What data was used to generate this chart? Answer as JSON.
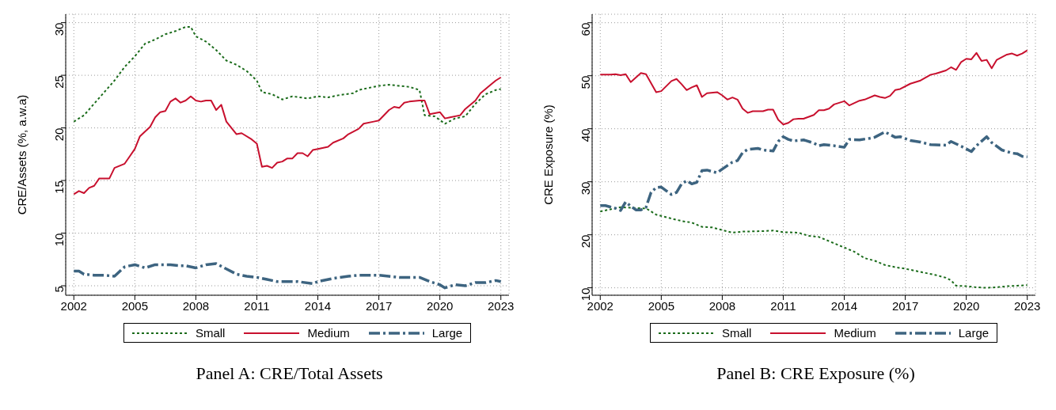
{
  "chart_data": [
    {
      "type": "line",
      "title": "Panel A: CRE/Total Assets",
      "ylabel": "CRE/Assets (%, a.w.a)",
      "xlim": [
        2001.6,
        2023.4
      ],
      "xticks": [
        2002,
        2005,
        2008,
        2011,
        2014,
        2017,
        2020,
        2023
      ],
      "ylim": [
        4.1,
        30.8
      ],
      "yticks": [
        5,
        10,
        15,
        20,
        25,
        30
      ],
      "grid": true,
      "legend": "bottom",
      "marker": "none",
      "series": [
        {
          "name": "Small",
          "color": "#1a6b1a",
          "line_style": "dotted",
          "x": [
            2002,
            2002.5,
            2003,
            2003.5,
            2004,
            2004.5,
            2005,
            2005.5,
            2006,
            2006.5,
            2007,
            2007.5,
            2007.75,
            2008,
            2008.5,
            2009,
            2009.5,
            2010,
            2010.5,
            2011,
            2011.25,
            2011.75,
            2012.25,
            2012.75,
            2013.5,
            2014,
            2014.5,
            2015,
            2015.75,
            2016,
            2016.5,
            2017,
            2017.5,
            2018,
            2018.5,
            2019,
            2019.25,
            2019.75,
            2020.25,
            2020.75,
            2021.25,
            2021.75,
            2022.25,
            2022.75,
            2023
          ],
          "values": [
            20.6,
            21.2,
            22.3,
            23.4,
            24.5,
            25.8,
            26.8,
            28.0,
            28.4,
            28.9,
            29.2,
            29.6,
            29.6,
            28.7,
            28.2,
            27.4,
            26.4,
            26.0,
            25.4,
            24.5,
            23.4,
            23.2,
            22.7,
            23.0,
            22.8,
            23.0,
            22.9,
            23.1,
            23.3,
            23.6,
            23.8,
            24.0,
            24.1,
            24.0,
            23.9,
            23.6,
            21.2,
            21.1,
            20.4,
            20.9,
            21.1,
            22.3,
            23.2,
            23.6,
            23.7
          ]
        },
        {
          "name": "Medium",
          "color": "#c8102e",
          "line_style": "solid",
          "x": [
            2002,
            2002.25,
            2002.5,
            2002.75,
            2003,
            2003.25,
            2003.75,
            2004,
            2004.5,
            2004.75,
            2005,
            2005.25,
            2005.75,
            2006,
            2006.25,
            2006.5,
            2006.75,
            2007,
            2007.25,
            2007.5,
            2007.75,
            2008,
            2008.25,
            2008.5,
            2008.75,
            2009,
            2009.25,
            2009.5,
            2009.75,
            2010,
            2010.25,
            2010.75,
            2011,
            2011.25,
            2011.5,
            2011.75,
            2012,
            2012.25,
            2012.5,
            2012.75,
            2013,
            2013.25,
            2013.5,
            2013.75,
            2014,
            2014.5,
            2014.75,
            2015.25,
            2015.5,
            2016,
            2016.25,
            2016.75,
            2017,
            2017.5,
            2017.75,
            2018,
            2018.25,
            2018.5,
            2019,
            2019.25,
            2019.5,
            2019.75,
            2020,
            2020.25,
            2020.5,
            2021,
            2021.25,
            2021.75,
            2022,
            2022.5,
            2022.75,
            2023
          ],
          "values": [
            13.7,
            14.0,
            13.8,
            14.3,
            14.5,
            15.2,
            15.2,
            16.2,
            16.6,
            17.3,
            18.0,
            19.2,
            20.1,
            21.0,
            21.5,
            21.6,
            22.5,
            22.8,
            22.4,
            22.6,
            23.0,
            22.6,
            22.5,
            22.6,
            22.6,
            21.7,
            22.2,
            20.6,
            20.0,
            19.4,
            19.5,
            18.9,
            18.5,
            16.3,
            16.4,
            16.2,
            16.7,
            16.8,
            17.1,
            17.1,
            17.6,
            17.6,
            17.3,
            17.9,
            18.0,
            18.2,
            18.6,
            19.0,
            19.4,
            19.9,
            20.4,
            20.6,
            20.7,
            21.7,
            22.0,
            21.9,
            22.4,
            22.5,
            22.6,
            22.6,
            21.3,
            21.4,
            21.5,
            20.9,
            21.0,
            21.2,
            21.8,
            22.6,
            23.3,
            24.1,
            24.5,
            24.8
          ]
        },
        {
          "name": "Large",
          "color": "#3d6480",
          "line_style": "dashed",
          "x": [
            2002,
            2002.25,
            2002.5,
            2003,
            2003.5,
            2004,
            2004.5,
            2005,
            2005.5,
            2006,
            2006.75,
            2007.25,
            2007.5,
            2008,
            2008.5,
            2009,
            2009.5,
            2010,
            2010.5,
            2011,
            2011.5,
            2012,
            2012.5,
            2013,
            2013.75,
            2014,
            2014.75,
            2015.5,
            2016,
            2017,
            2018,
            2019,
            2019.5,
            2020,
            2020.25,
            2020.75,
            2021.25,
            2021.75,
            2022.25,
            2022.75,
            2023
          ],
          "values": [
            6.4,
            6.4,
            6.1,
            6.0,
            6.0,
            5.9,
            6.8,
            7.0,
            6.7,
            7.0,
            7.0,
            6.9,
            6.9,
            6.7,
            7.0,
            7.1,
            6.6,
            6.1,
            5.9,
            5.8,
            5.6,
            5.4,
            5.4,
            5.4,
            5.2,
            5.4,
            5.7,
            5.9,
            6.0,
            6.0,
            5.8,
            5.8,
            5.4,
            5.1,
            4.8,
            5.1,
            5.0,
            5.3,
            5.3,
            5.5,
            5.4
          ]
        }
      ]
    },
    {
      "type": "line",
      "title": "Panel B: CRE Exposure (%)",
      "ylabel": "CRE Exposure (%)",
      "xlim": [
        2001.6,
        2023.4
      ],
      "xticks": [
        2002,
        2005,
        2008,
        2011,
        2014,
        2017,
        2020,
        2023
      ],
      "ylim": [
        8.6,
        61.6
      ],
      "yticks": [
        10,
        20,
        30,
        40,
        50,
        60
      ],
      "grid": true,
      "legend": "bottom",
      "marker": "none",
      "series": [
        {
          "name": "Small",
          "color": "#1a6b1a",
          "line_style": "dotted",
          "x": [
            2002,
            2002.5,
            2003,
            2003.5,
            2004,
            2004.25,
            2004.75,
            2005.25,
            2006,
            2006.5,
            2007,
            2007.5,
            2008,
            2008.5,
            2009,
            2010,
            2010.5,
            2011,
            2011.75,
            2012.25,
            2012.75,
            2013.25,
            2014,
            2014.5,
            2015,
            2015.5,
            2016,
            2016.5,
            2017,
            2017.5,
            2018,
            2018.5,
            2019,
            2019.25,
            2019.5,
            2020,
            2020.5,
            2021,
            2021.5,
            2022,
            2022.5,
            2023
          ],
          "values": [
            24.4,
            24.8,
            25.2,
            25.1,
            25.0,
            25.0,
            23.8,
            23.3,
            22.6,
            22.3,
            21.5,
            21.4,
            20.9,
            20.4,
            20.6,
            20.7,
            20.8,
            20.5,
            20.4,
            19.8,
            19.6,
            18.8,
            17.6,
            16.8,
            15.6,
            15.1,
            14.3,
            13.9,
            13.6,
            13.2,
            12.8,
            12.4,
            11.9,
            11.4,
            10.4,
            10.3,
            10.1,
            10.0,
            10.1,
            10.3,
            10.4,
            10.5
          ]
        },
        {
          "name": "Medium",
          "color": "#c8102e",
          "line_style": "solid",
          "x": [
            2002,
            2002.5,
            2002.75,
            2003,
            2003.25,
            2003.5,
            2004,
            2004.25,
            2004.75,
            2005,
            2005.5,
            2005.75,
            2006,
            2006.25,
            2006.5,
            2006.75,
            2007,
            2007.25,
            2007.75,
            2008,
            2008.25,
            2008.5,
            2008.75,
            2009,
            2009.25,
            2009.5,
            2010,
            2010.25,
            2010.5,
            2010.75,
            2011,
            2011.25,
            2011.5,
            2011.75,
            2012,
            2012.5,
            2012.75,
            2013,
            2013.25,
            2013.5,
            2014,
            2014.25,
            2014.75,
            2015,
            2015.5,
            2015.75,
            2016,
            2016.25,
            2016.5,
            2016.75,
            2017.25,
            2017.75,
            2018.25,
            2018.5,
            2019,
            2019.25,
            2019.5,
            2019.75,
            2020,
            2020.25,
            2020.5,
            2020.75,
            2021,
            2021.25,
            2021.5,
            2022,
            2022.25,
            2022.5,
            2022.75,
            2023
          ],
          "values": [
            50.2,
            50.2,
            50.3,
            50.1,
            50.3,
            48.8,
            50.5,
            50.3,
            46.9,
            47.1,
            49.0,
            49.4,
            48.4,
            47.3,
            47.8,
            48.2,
            46.0,
            46.7,
            46.9,
            46.3,
            45.5,
            45.9,
            45.5,
            43.8,
            43.0,
            43.3,
            43.3,
            43.6,
            43.6,
            41.7,
            40.8,
            41.1,
            41.8,
            41.9,
            41.9,
            42.6,
            43.5,
            43.5,
            43.8,
            44.6,
            45.2,
            44.4,
            45.3,
            45.5,
            46.3,
            46.0,
            45.8,
            46.2,
            47.3,
            47.5,
            48.5,
            49.1,
            50.2,
            50.4,
            51.0,
            51.6,
            51.1,
            52.6,
            53.2,
            53.1,
            54.3,
            52.8,
            53.0,
            51.4,
            53.0,
            54.0,
            54.2,
            53.8,
            54.2,
            54.8
          ]
        },
        {
          "name": "Large",
          "color": "#3d6480",
          "line_style": "dashed",
          "x": [
            2002,
            2002.25,
            2002.75,
            2003,
            2003.25,
            2003.5,
            2003.75,
            2004,
            2004.25,
            2004.5,
            2004.75,
            2005,
            2005.25,
            2005.5,
            2005.75,
            2006,
            2006.25,
            2006.5,
            2006.75,
            2007,
            2007.25,
            2007.75,
            2008,
            2008.5,
            2008.75,
            2009,
            2009.25,
            2009.75,
            2010,
            2010.5,
            2010.75,
            2011,
            2011.25,
            2011.5,
            2012,
            2012.5,
            2012.75,
            2013,
            2013.5,
            2014,
            2014.25,
            2014.75,
            2015.25,
            2015.5,
            2016,
            2016.5,
            2016.75,
            2017.25,
            2017.75,
            2018.25,
            2019,
            2019.25,
            2019.75,
            2020,
            2020.25,
            2020.5,
            2021,
            2021.25,
            2021.75,
            2022.25,
            2022.5,
            2022.75,
            2023
          ],
          "values": [
            25.5,
            25.5,
            25.0,
            24.6,
            26.2,
            25.4,
            24.7,
            24.7,
            25.2,
            28.0,
            28.9,
            29.0,
            28.3,
            27.6,
            28.0,
            29.6,
            30.2,
            29.6,
            29.9,
            32.1,
            32.2,
            31.7,
            32.4,
            33.7,
            34.0,
            35.5,
            36.1,
            36.3,
            36.0,
            35.8,
            37.6,
            38.5,
            38.0,
            37.7,
            37.9,
            37.3,
            36.8,
            37.0,
            36.8,
            36.5,
            38.0,
            37.9,
            38.2,
            38.4,
            39.4,
            38.4,
            38.5,
            37.8,
            37.5,
            37.0,
            36.9,
            37.6,
            36.7,
            36.2,
            35.7,
            36.8,
            38.5,
            37.4,
            36.0,
            35.4,
            35.3,
            34.8,
            34.7
          ]
        }
      ]
    }
  ]
}
